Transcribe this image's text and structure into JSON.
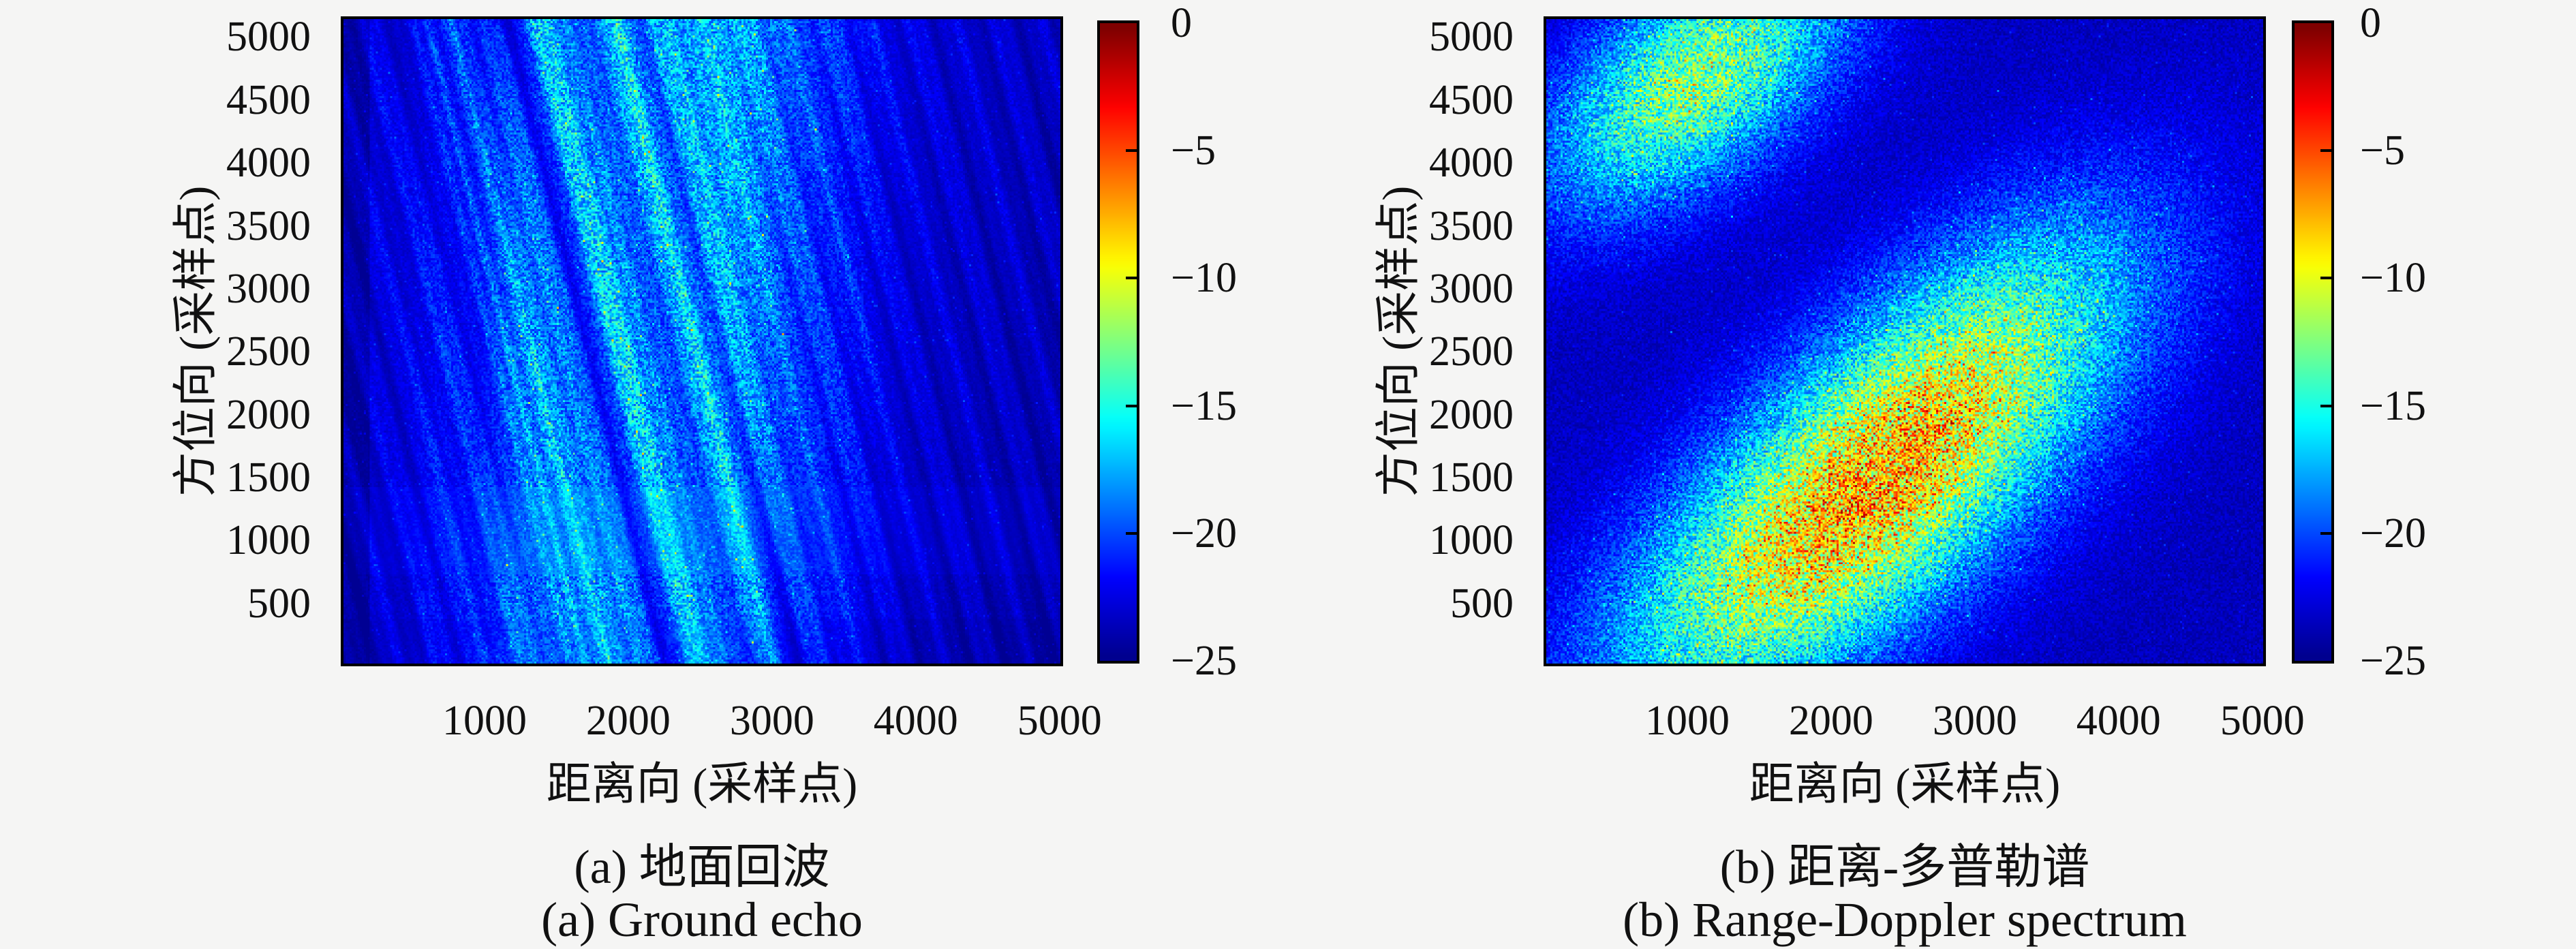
{
  "figure": {
    "background_color": "#f5f5f4",
    "text_color": "#111111",
    "plot_base_color": "#0a10a2",
    "colormap_name": "jet",
    "jet_stops": [
      [
        0.0,
        [
          0,
          0,
          143
        ]
      ],
      [
        0.125,
        [
          0,
          0,
          255
        ]
      ],
      [
        0.375,
        [
          0,
          255,
          255
        ]
      ],
      [
        0.625,
        [
          255,
          255,
          0
        ]
      ],
      [
        0.875,
        [
          255,
          0,
          0
        ]
      ],
      [
        1.0,
        [
          127,
          0,
          0
        ]
      ]
    ]
  },
  "chart_data": [
    {
      "type": "heatmap",
      "id": "a",
      "caption_zh": "(a) 地面回波",
      "caption_en": "(a) Ground echo",
      "xlabel": "距离向 (采样点)",
      "ylabel": "方位向 (采样点)",
      "x_ticks": [
        1000,
        2000,
        3000,
        4000,
        5000
      ],
      "y_ticks": [
        500,
        1000,
        1500,
        2000,
        2500,
        3000,
        3500,
        4000,
        4500,
        5000
      ],
      "x_range": [
        0,
        5025
      ],
      "y_range": [
        0,
        5165
      ],
      "value_units": "dB",
      "legend_position": "right-colorbar",
      "grid": false,
      "colorbar": {
        "range_db": [
          -25,
          0
        ],
        "tick_values": [
          0,
          -5,
          -10,
          -15,
          -20,
          -25
        ],
        "tick_labels": [
          "0",
          "−5",
          "−10",
          "−15",
          "−20",
          "−25"
        ],
        "steps": 64
      },
      "render": {
        "seed": 7,
        "base_db": -23.2,
        "top_brighten_db": 0.6,
        "range_bands": [
          [
            1950,
            520,
            5.0
          ],
          [
            2750,
            280,
            3.2
          ],
          [
            1250,
            220,
            2.0
          ],
          [
            3350,
            280,
            1.5
          ],
          [
            700,
            160,
            1.0
          ]
        ],
        "left_dark": [
          180,
          1.3
        ],
        "right_dark": [
          3600,
          1.0
        ],
        "diag_slope": 0.215,
        "diag_dark": [
          [
            2250,
            90,
            3.2
          ],
          [
            2760,
            70,
            2.6
          ],
          [
            3150,
            60,
            1.8
          ],
          [
            1500,
            50,
            1.2
          ]
        ],
        "diag_bright": [
          [
            2500,
            55,
            1.6
          ],
          [
            2980,
            45,
            1.2
          ],
          [
            1680,
            20,
            2.0
          ],
          [
            1860,
            16,
            1.6
          ]
        ],
        "diag_ripple": [
          [
            47,
            0.7
          ],
          [
            19,
            0.45
          ]
        ],
        "azimuth_bands": [
          [
            700,
            1400,
            0.35,
            0.55
          ],
          [
            0,
            350,
            -0.3,
            0.8
          ]
        ],
        "noise_db": 3.6,
        "spike_prob": 0.04,
        "spike_db": 7.5,
        "hot_prob": 0.0015,
        "hot_db": 10,
        "bg_speckle_prob": 0.02,
        "bg_speckle_db": 2.2
      }
    },
    {
      "type": "heatmap",
      "id": "b",
      "caption_zh": "(b) 距离-多普勒谱",
      "caption_en": "(b) Range-Doppler spectrum",
      "xlabel": "距离向 (采样点)",
      "ylabel": "方位向 (采样点)",
      "x_ticks": [
        1000,
        2000,
        3000,
        4000,
        5000
      ],
      "y_ticks": [
        500,
        1000,
        1500,
        2000,
        2500,
        3000,
        3500,
        4000,
        4500,
        5000
      ],
      "x_range": [
        0,
        5025
      ],
      "y_range": [
        0,
        5165
      ],
      "value_units": "dB",
      "legend_position": "right-colorbar",
      "grid": false,
      "colorbar": {
        "range_db": [
          -25,
          0
        ],
        "tick_values": [
          0,
          -5,
          -10,
          -15,
          -20,
          -25
        ],
        "tick_labels": [
          "0",
          "−5",
          "−10",
          "−15",
          "−20",
          "−25"
        ],
        "steps": 64
      },
      "render": {
        "seed": 13,
        "base_db": -23.8,
        "blob_angle_deg": 45,
        "blobs": [
          [
            2050,
            1150,
            1450,
            640,
            13.8
          ],
          [
            1050,
            4680,
            950,
            500,
            10.8
          ],
          [
            3150,
            2700,
            1150,
            620,
            5.2
          ]
        ],
        "noise_db": 3.8,
        "noise_floor_db": 0.9,
        "spike_prob_scale": 0.35,
        "spike_db": 4.5,
        "bg_speckle_prob": 0.02,
        "bg_speckle_db": 2.2
      }
    }
  ]
}
